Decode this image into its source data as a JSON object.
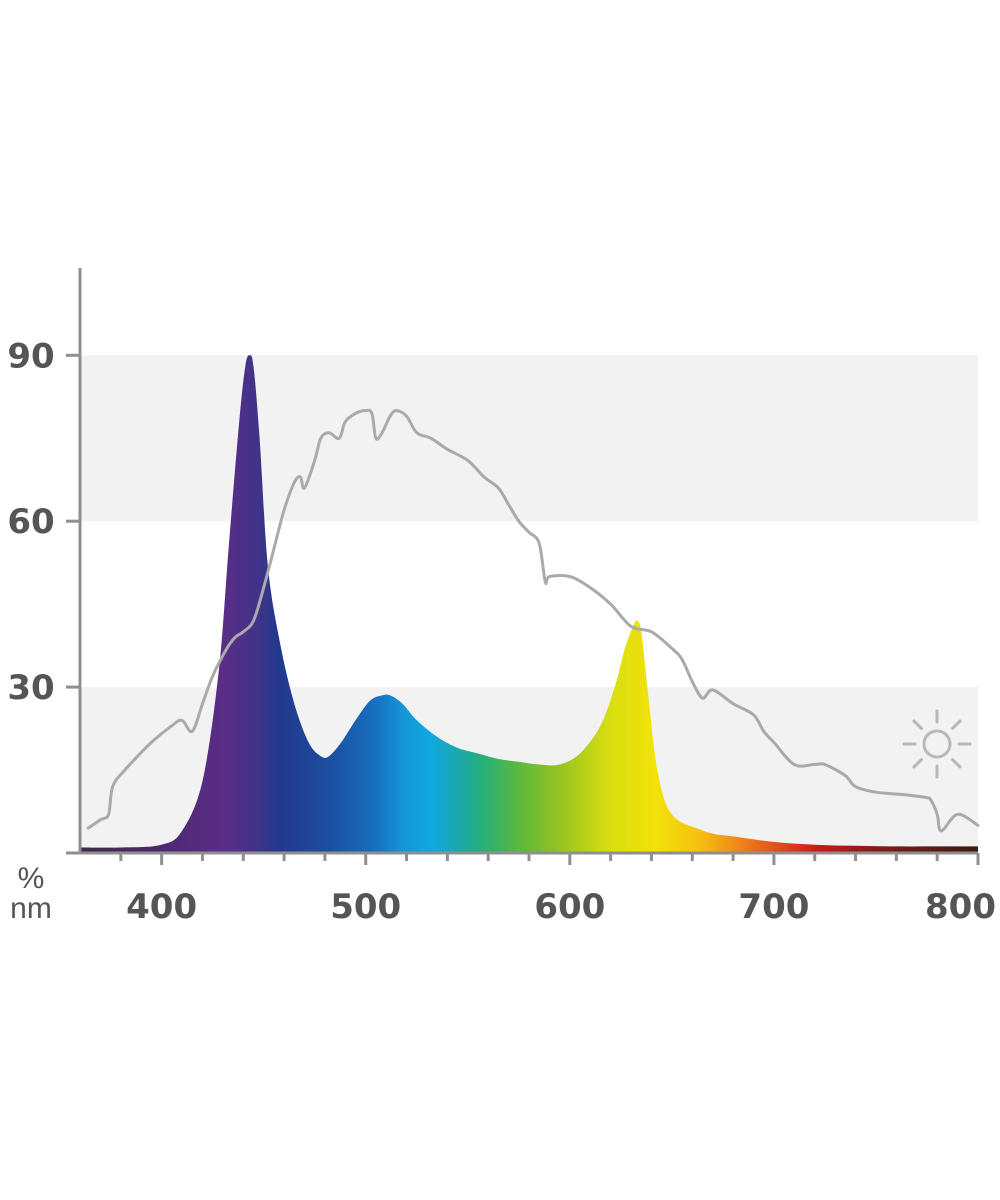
{
  "chart_data": {
    "type": "area",
    "title": "",
    "xlabel": "nm",
    "ylabel": "%",
    "xlim": [
      360,
      800
    ],
    "ylim": [
      0,
      105
    ],
    "x_ticks": [
      400,
      500,
      600,
      700,
      800
    ],
    "y_ticks": [
      30,
      60,
      90
    ],
    "x_tick_labels": [
      "400",
      "500",
      "600",
      "700",
      "800"
    ],
    "y_tick_labels": [
      "30",
      "60",
      "90"
    ],
    "grid": "alternating horizontal bands",
    "band_color": "#f2f2f2",
    "series": [
      {
        "style": "spectrum-filled area",
        "x": [
          360,
          380,
          400,
          410,
          420,
          428,
          433,
          438,
          441,
          443,
          445,
          448,
          452,
          458,
          465,
          472,
          478,
          482,
          488,
          495,
          502,
          508,
          512,
          518,
          525,
          535,
          545,
          555,
          565,
          575,
          585,
          595,
          605,
          615,
          622,
          627,
          631,
          633,
          635,
          638,
          642,
          646,
          650,
          655,
          662,
          670,
          680,
          700,
          720,
          740,
          760,
          780,
          800
        ],
        "y": [
          1,
          1,
          1.5,
          4,
          13,
          33,
          56,
          78,
          88,
          90,
          88,
          75,
          52,
          38,
          27,
          20,
          17.5,
          17.5,
          20,
          24,
          27.5,
          28.5,
          28.5,
          27,
          24,
          21,
          19,
          18,
          17,
          16.5,
          16,
          16,
          18,
          23,
          30,
          37,
          41,
          42,
          40,
          30,
          17,
          10,
          7,
          5.5,
          4.5,
          3.5,
          3,
          2,
          1.5,
          1.3,
          1.2,
          1.2,
          1.2
        ]
      },
      {
        "style": "gray line",
        "color": "#aaaaaa",
        "x": [
          364,
          370,
          374,
          376,
          382,
          395,
          405,
          410,
          415,
          420,
          425,
          432,
          436,
          440,
          445,
          450,
          455,
          460,
          465,
          468,
          470,
          475,
          478,
          482,
          487,
          490,
          495,
          500,
          503,
          505,
          508,
          512,
          515,
          520,
          525,
          532,
          540,
          550,
          558,
          565,
          570,
          575,
          580,
          585,
          588,
          590,
          600,
          610,
          620,
          630,
          640,
          650,
          655,
          660,
          665,
          670,
          680,
          690,
          695,
          700,
          710,
          720,
          725,
          735,
          740,
          750,
          765,
          775,
          777,
          780,
          782,
          790,
          800
        ],
        "y": [
          4.5,
          6,
          7,
          12,
          15,
          20,
          23,
          24,
          22,
          27,
          32,
          37,
          39,
          40,
          42,
          48,
          55,
          62,
          67,
          68,
          66,
          71,
          75,
          76,
          75,
          78,
          79.5,
          80,
          79.5,
          75,
          76,
          79,
          80,
          79,
          76,
          75,
          73,
          71,
          68,
          66,
          63,
          60,
          58,
          56,
          49,
          50,
          50,
          48,
          45,
          41,
          40,
          37,
          35,
          31,
          28,
          29.5,
          27,
          25,
          22,
          20,
          16,
          16,
          16,
          14,
          12,
          11,
          10.5,
          10,
          9.5,
          7,
          4,
          7,
          5
        ]
      }
    ],
    "annotations": [
      "sun-icon"
    ]
  }
}
